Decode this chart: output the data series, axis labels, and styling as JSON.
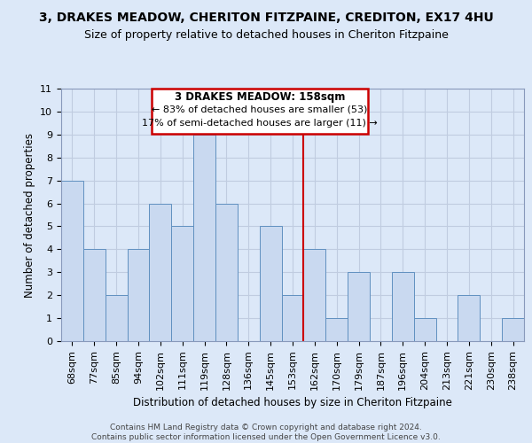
{
  "title": "3, DRAKES MEADOW, CHERITON FITZPAINE, CREDITON, EX17 4HU",
  "subtitle": "Size of property relative to detached houses in Cheriton Fitzpaine",
  "xlabel": "Distribution of detached houses by size in Cheriton Fitzpaine",
  "ylabel": "Number of detached properties",
  "bin_labels": [
    "68sqm",
    "77sqm",
    "85sqm",
    "94sqm",
    "102sqm",
    "111sqm",
    "119sqm",
    "128sqm",
    "136sqm",
    "145sqm",
    "153sqm",
    "162sqm",
    "170sqm",
    "179sqm",
    "187sqm",
    "196sqm",
    "204sqm",
    "213sqm",
    "221sqm",
    "230sqm",
    "238sqm"
  ],
  "bar_heights": [
    7,
    4,
    2,
    4,
    6,
    5,
    9,
    6,
    0,
    5,
    2,
    4,
    1,
    3,
    0,
    3,
    1,
    0,
    2,
    0,
    1
  ],
  "bar_color": "#c9d9f0",
  "bar_edge_color": "#6090c0",
  "highlight_line_index": 11,
  "annotation_title": "3 DRAKES MEADOW: 158sqm",
  "annotation_line1": "← 83% of detached houses are smaller (53)",
  "annotation_line2": "17% of semi-detached houses are larger (11) →",
  "annotation_box_color": "#ffffff",
  "annotation_box_edge_color": "#cc0000",
  "ylim": [
    0,
    11
  ],
  "yticks": [
    0,
    1,
    2,
    3,
    4,
    5,
    6,
    7,
    8,
    9,
    10,
    11
  ],
  "footer_line1": "Contains HM Land Registry data © Crown copyright and database right 2024.",
  "footer_line2": "Contains public sector information licensed under the Open Government Licence v3.0.",
  "grid_color": "#c0cce0",
  "background_color": "#dce8f8",
  "title_fontsize": 10,
  "subtitle_fontsize": 9,
  "axis_fontsize": 8.5,
  "tick_fontsize": 8,
  "footer_fontsize": 6.5
}
